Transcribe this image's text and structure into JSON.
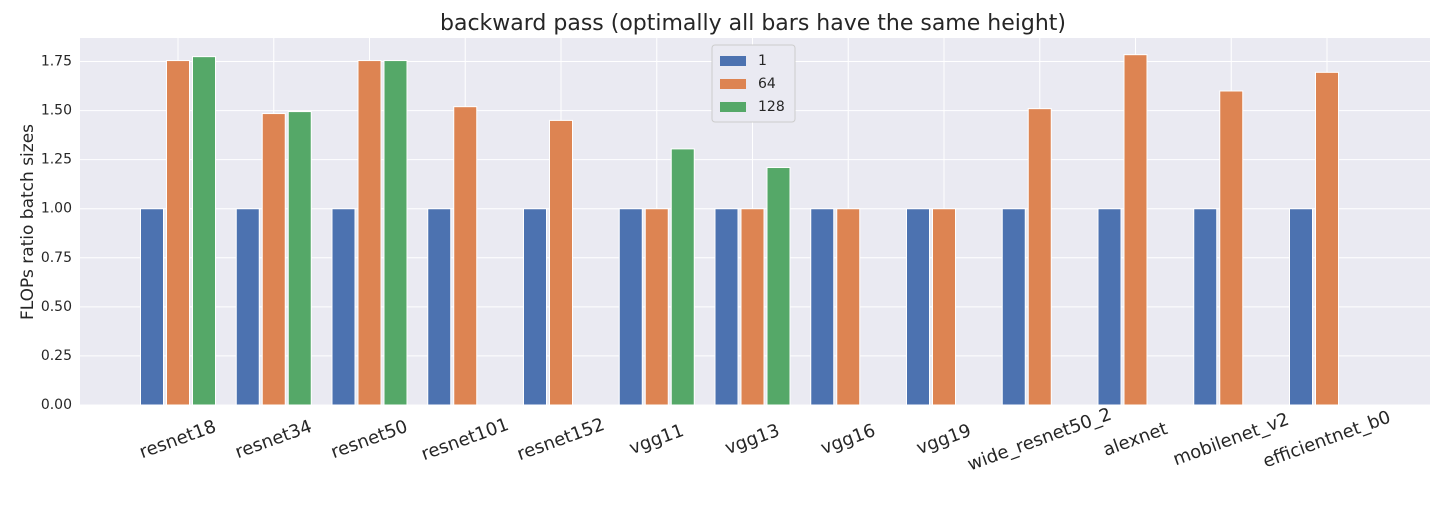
{
  "chart_data": {
    "type": "bar",
    "title": "backward pass (optimally all bars have the same height)",
    "y_label": "FLOPs ratio batch sizes",
    "categories": [
      "resnet18",
      "resnet34",
      "resnet50",
      "resnet101",
      "resnet152",
      "vgg11",
      "vgg13",
      "vgg16",
      "vgg19",
      "wide_resnet50_2",
      "alexnet",
      "mobilenet_v2",
      "efficientnet_b0"
    ],
    "series": [
      {
        "name": "1",
        "color": "#4c72b0",
        "values": [
          1,
          1,
          1,
          1,
          1,
          1,
          1,
          1,
          1,
          1,
          1,
          1,
          1
        ]
      },
      {
        "name": "64",
        "color": "#dd8452",
        "values": [
          1.755,
          1.485,
          1.755,
          1.52,
          1.45,
          1,
          1,
          1,
          1,
          1.51,
          1.785,
          1.6,
          1.695
        ]
      },
      {
        "name": "128",
        "color": "#55a868",
        "values": [
          1.775,
          1.495,
          1.755,
          null,
          null,
          1.305,
          1.21,
          null,
          null,
          null,
          null,
          null,
          null
        ]
      }
    ],
    "ylim": [
      0,
      1.87
    ],
    "yticks": [
      {
        "value": 0,
        "label": "0.00"
      },
      {
        "value": 0.25,
        "label": "0.25"
      },
      {
        "value": 0.5,
        "label": "0.50"
      },
      {
        "value": 0.75,
        "label": "0.75"
      },
      {
        "value": 1,
        "label": "1.00"
      },
      {
        "value": 1.25,
        "label": "1.25"
      },
      {
        "value": 1.5,
        "label": "1.50"
      },
      {
        "value": 1.75,
        "label": "1.75"
      }
    ],
    "grid": true,
    "legend": "upper center"
  }
}
